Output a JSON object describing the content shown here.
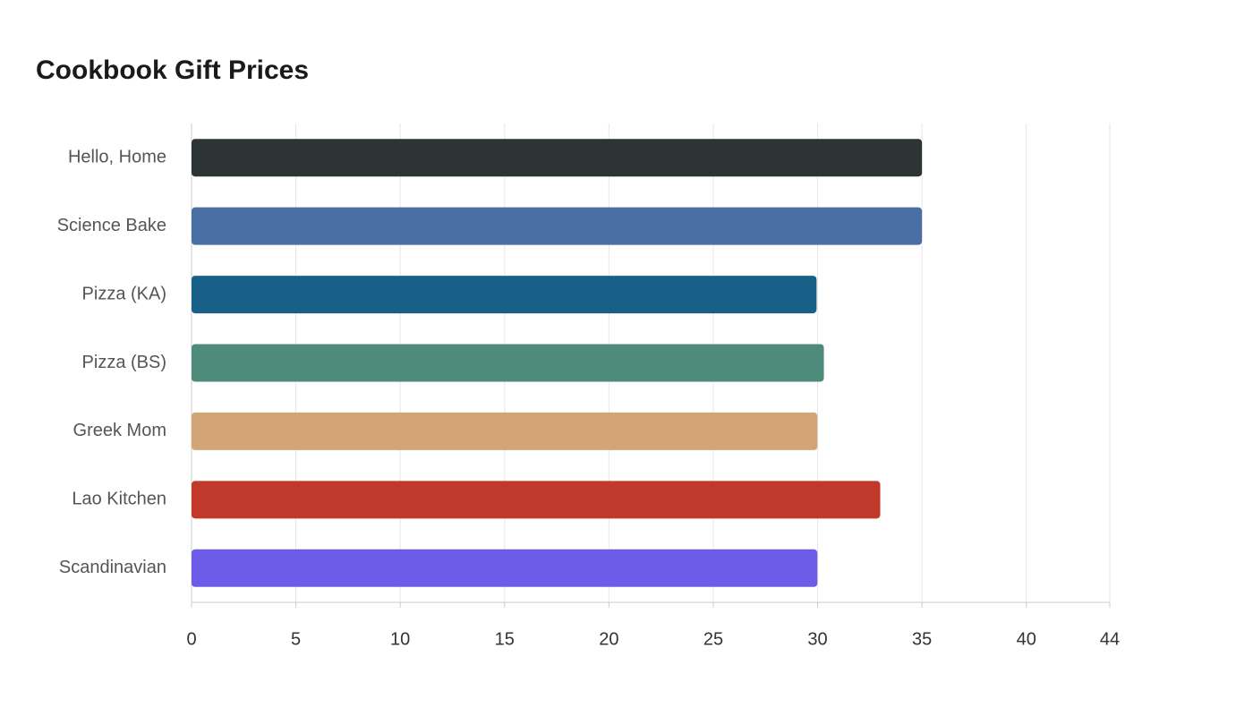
{
  "chart_data": {
    "type": "bar",
    "orientation": "horizontal",
    "title": "Cookbook Gift Prices",
    "categories": [
      "Hello, Home",
      "Science Bake",
      "Pizza (KA)",
      "Pizza (BS)",
      "Greek Mom",
      "Lao Kitchen",
      "Scandinavian"
    ],
    "values": [
      35,
      35,
      29.95,
      30.3,
      29.99,
      33,
      29.99
    ],
    "colors": [
      "#2d3436",
      "#4a6fa5",
      "#186088",
      "#4f8b7a",
      "#d2a476",
      "#c0392b",
      "#6c5ce7"
    ],
    "xlim": [
      0,
      44
    ],
    "xticks": [
      0,
      5,
      10,
      15,
      20,
      25,
      30,
      35,
      40,
      44
    ],
    "grid": true
  }
}
